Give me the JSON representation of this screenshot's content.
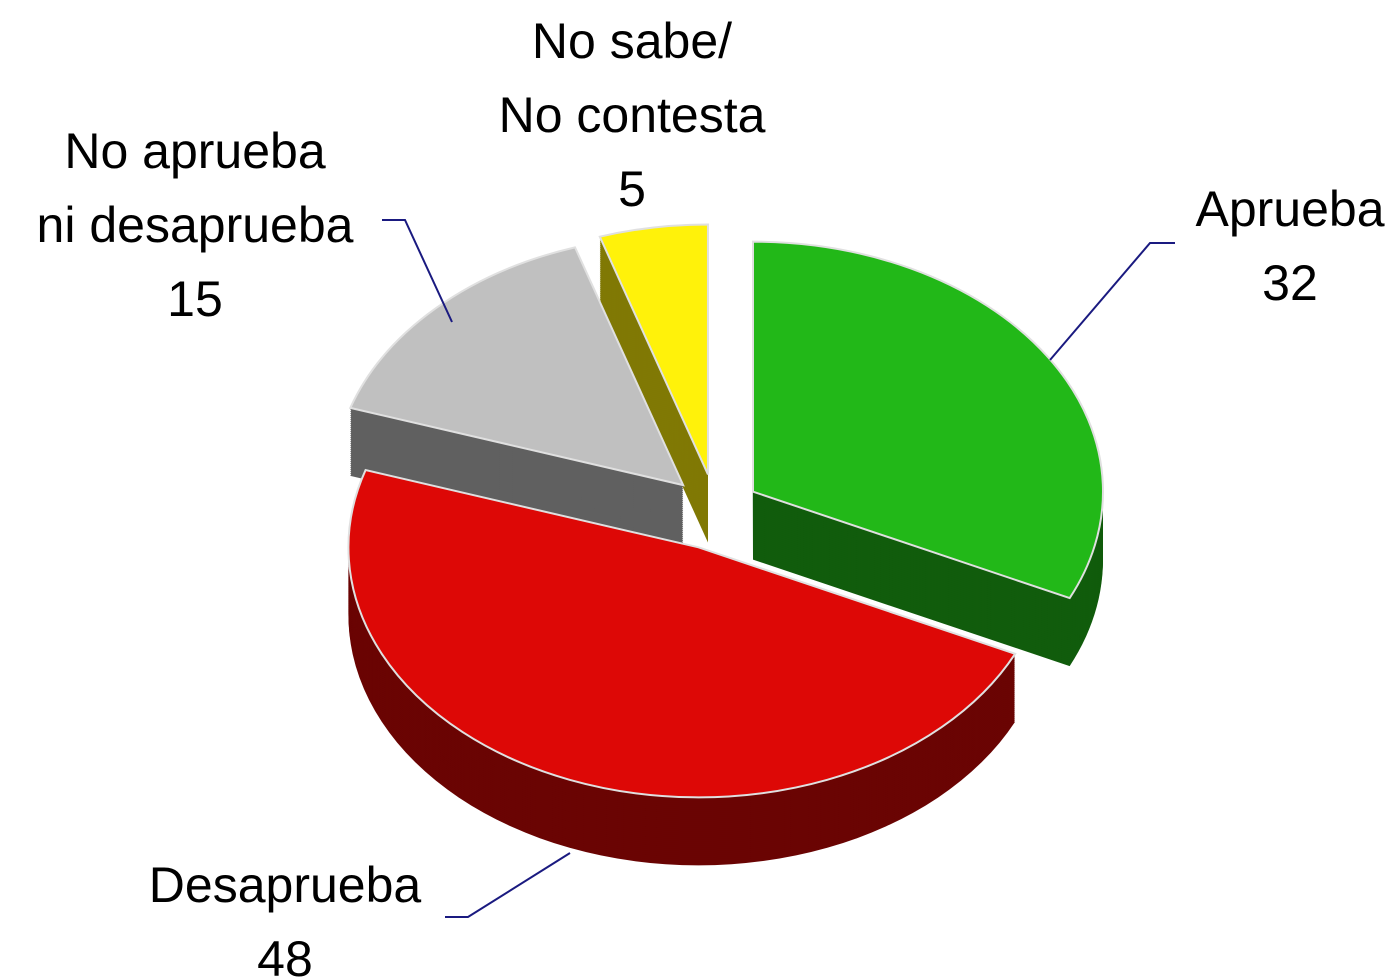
{
  "chart_data": {
    "type": "pie",
    "categories": [
      "Aprueba",
      "Desaprueba",
      "No aprueba\nni desaprueba",
      "No sabe/\nNo contesta"
    ],
    "values": [
      32,
      48,
      15,
      5
    ],
    "colors": [
      "#22b818",
      "#dd0806",
      "#c0c0c0",
      "#fff20a"
    ]
  }
}
